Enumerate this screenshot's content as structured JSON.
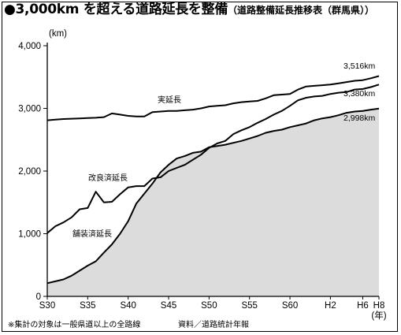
{
  "title": {
    "main": "●3,000km を超える道路延長を整備",
    "sub": "（道路整備延長推移表（群馬県））"
  },
  "footnote": "※集計の対象は一般県道以上の全路線",
  "source": "資料／道路統計年報",
  "chart_data": {
    "type": "area",
    "title": "3,000km を超える道路延長を整備",
    "ylabel": "(km)",
    "xunit": "(年)",
    "ylim": [
      0,
      4000
    ],
    "yticks": [
      0,
      1000,
      2000,
      3000,
      4000
    ],
    "ytick_labels": [
      "0",
      "1,000",
      "2,000",
      "3,000",
      "4,000"
    ],
    "xtick_labels": [
      "S30",
      "S35",
      "S40",
      "S45",
      "S50",
      "S55",
      "S60",
      "H2",
      "H6",
      "H8"
    ],
    "x": [
      "S30",
      "S31",
      "S32",
      "S33",
      "S34",
      "S35",
      "S36",
      "S37",
      "S38",
      "S39",
      "S40",
      "S41",
      "S42",
      "S43",
      "S44",
      "S45",
      "S46",
      "S47",
      "S48",
      "S49",
      "S50",
      "S51",
      "S52",
      "S53",
      "S54",
      "S55",
      "S56",
      "S57",
      "S58",
      "S59",
      "S60",
      "S61",
      "S62",
      "S63",
      "H1",
      "H2",
      "H3",
      "H4",
      "H5",
      "H6",
      "H7",
      "H8"
    ],
    "series": [
      {
        "name": "実延長",
        "values": [
          2810,
          2820,
          2830,
          2835,
          2840,
          2845,
          2850,
          2860,
          2920,
          2900,
          2880,
          2870,
          2870,
          2940,
          2950,
          2960,
          2960,
          2970,
          2980,
          3000,
          3030,
          3040,
          3050,
          3080,
          3100,
          3110,
          3120,
          3160,
          3210,
          3220,
          3230,
          3300,
          3350,
          3360,
          3370,
          3380,
          3400,
          3420,
          3440,
          3450,
          3480,
          3516
        ],
        "end_label": "3,516km"
      },
      {
        "name": "改良済延長",
        "values": [
          1010,
          1120,
          1180,
          1260,
          1390,
          1410,
          1670,
          1500,
          1510,
          1630,
          1740,
          1760,
          1760,
          1880,
          1900,
          2000,
          2050,
          2100,
          2180,
          2260,
          2370,
          2440,
          2480,
          2590,
          2650,
          2700,
          2770,
          2830,
          2900,
          2960,
          3040,
          3130,
          3170,
          3190,
          3200,
          3230,
          3250,
          3260,
          3300,
          3310,
          3340,
          3380
        ],
        "end_label": "3,380km"
      },
      {
        "name": "舗装済延長",
        "values": [
          210,
          240,
          270,
          330,
          410,
          490,
          560,
          700,
          830,
          1000,
          1200,
          1480,
          1640,
          1800,
          1980,
          2100,
          2200,
          2240,
          2290,
          2310,
          2380,
          2400,
          2420,
          2450,
          2480,
          2520,
          2560,
          2610,
          2640,
          2660,
          2700,
          2730,
          2760,
          2810,
          2840,
          2860,
          2890,
          2930,
          2950,
          2960,
          2980,
          2998
        ],
        "end_label": "2,998km"
      }
    ],
    "fill_color": "#dcdcdc",
    "line_color": "#000000",
    "grid": false
  }
}
